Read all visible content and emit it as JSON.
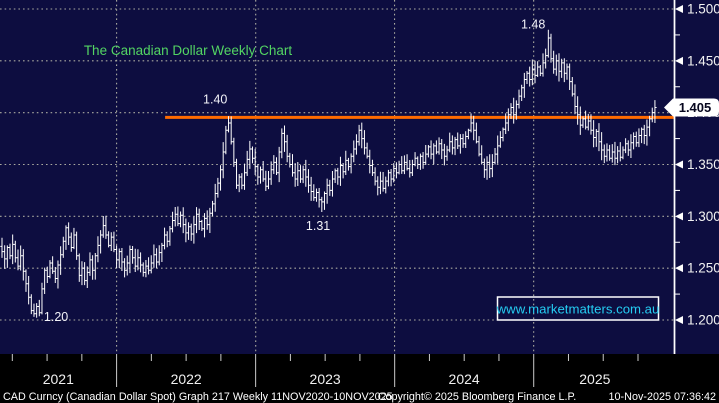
{
  "header": {
    "title": "The Canadian Dollar Weekly Chart",
    "title_color": "#53d463"
  },
  "watermark": {
    "text": "www.marketmatters.com.au",
    "color": "#25cdf2",
    "border_color": "#ffffff"
  },
  "price_tag": {
    "value": "1.405"
  },
  "footer": {
    "left": "CAD Curncy (Canadian Dollar Spot) Graph 217 Weekly 11NOV2020-10NOV2025",
    "center": "Copyright© 2025 Bloomberg Finance L.P.",
    "right": "10-Nov-2025 07:36:42"
  },
  "colors": {
    "background": "#0d0d40",
    "strip": "#000000",
    "bars": "#ffffff",
    "grid": "#aaaaa0",
    "axis": "#ffffff",
    "resistance": "#ff6b00"
  },
  "chart_data": {
    "type": "ohlc-bar",
    "title": "The Canadian Dollar Weekly Chart",
    "instrument": "CAD Curncy (Canadian Dollar Spot)",
    "graph_number": "217",
    "period": "Weekly",
    "date_range": "11NOV2020-10NOV2025",
    "last_price": 1.405,
    "ylim": [
      1.167,
      1.509
    ],
    "y_major_ticks": [
      1.2,
      1.25,
      1.3,
      1.35,
      1.4,
      1.45,
      1.5
    ],
    "y_major_labels": [
      "1.200",
      "1.250",
      "1.300",
      "1.350",
      "1.400",
      "1.450",
      "1.500"
    ],
    "y_minor_ticks": [
      1.225,
      1.275,
      1.325,
      1.375,
      1.425,
      1.475
    ],
    "grid": true,
    "x_year_labels": [
      "2021",
      "2022",
      "2023",
      "2024",
      "2025"
    ],
    "year_start_weeks": [
      43.0,
      95.2,
      147.3,
      199.5
    ],
    "weeks_per_quarter": 13.043,
    "weeks_total": 246,
    "resistance_line": {
      "level": 1.3955,
      "label": "1.40",
      "start_week": 61.2,
      "color": "#ff6b00"
    },
    "annotations": [
      {
        "text": "1.40",
        "week": 80.0,
        "price": 1.409
      },
      {
        "text": "1.48",
        "week": 199.3,
        "price": 1.481
      },
      {
        "text": "1.31",
        "week": 118.6,
        "price": 1.287
      },
      {
        "text": "1.20",
        "week": 20.3,
        "price": 1.199
      }
    ],
    "weekly_closes": [
      1.266,
      1.259,
      1.27,
      1.262,
      1.273,
      1.26,
      1.252,
      1.262,
      1.247,
      1.235,
      1.222,
      1.209,
      1.206,
      1.213,
      1.207,
      1.23,
      1.248,
      1.242,
      1.255,
      1.247,
      1.24,
      1.253,
      1.263,
      1.276,
      1.289,
      1.28,
      1.27,
      1.282,
      1.262,
      1.243,
      1.25,
      1.238,
      1.246,
      1.258,
      1.248,
      1.262,
      1.272,
      1.282,
      1.291,
      1.282,
      1.272,
      1.28,
      1.268,
      1.258,
      1.266,
      1.256,
      1.248,
      1.255,
      1.268,
      1.26,
      1.252,
      1.26,
      1.253,
      1.246,
      1.252,
      1.248,
      1.255,
      1.263,
      1.256,
      1.265,
      1.272,
      1.282,
      1.276,
      1.288,
      1.296,
      1.302,
      1.293,
      1.301,
      1.292,
      1.284,
      1.29,
      1.283,
      1.292,
      1.302,
      1.295,
      1.288,
      1.298,
      1.292,
      1.303,
      1.312,
      1.322,
      1.332,
      1.345,
      1.362,
      1.383,
      1.39,
      1.372,
      1.352,
      1.33,
      1.338,
      1.33,
      1.342,
      1.355,
      1.365,
      1.356,
      1.348,
      1.338,
      1.345,
      1.336,
      1.329,
      1.336,
      1.345,
      1.352,
      1.342,
      1.362,
      1.38,
      1.372,
      1.358,
      1.35,
      1.342,
      1.336,
      1.344,
      1.336,
      1.345,
      1.338,
      1.33,
      1.324,
      1.318,
      1.323,
      1.316,
      1.314,
      1.322,
      1.33,
      1.325,
      1.336,
      1.344,
      1.338,
      1.349,
      1.343,
      1.354,
      1.348,
      1.358,
      1.365,
      1.372,
      1.383,
      1.375,
      1.366,
      1.358,
      1.349,
      1.342,
      1.334,
      1.328,
      1.334,
      1.327,
      1.334,
      1.342,
      1.336,
      1.346,
      1.342,
      1.35,
      1.344,
      1.352,
      1.346,
      1.342,
      1.35,
      1.356,
      1.35,
      1.358,
      1.352,
      1.36,
      1.367,
      1.36,
      1.368,
      1.362,
      1.37,
      1.364,
      1.358,
      1.364,
      1.372,
      1.366,
      1.374,
      1.368,
      1.375,
      1.37,
      1.377,
      1.383,
      1.39,
      1.383,
      1.372,
      1.36,
      1.352,
      1.345,
      1.352,
      1.346,
      1.352,
      1.36,
      1.368,
      1.376,
      1.384,
      1.39,
      1.398,
      1.405,
      1.398,
      1.408,
      1.416,
      1.424,
      1.432,
      1.438,
      1.432,
      1.442,
      1.436,
      1.444,
      1.438,
      1.448,
      1.455,
      1.472,
      1.452,
      1.442,
      1.45,
      1.44,
      1.448,
      1.438,
      1.444,
      1.43,
      1.418,
      1.406,
      1.398,
      1.388,
      1.394,
      1.386,
      1.392,
      1.383,
      1.376,
      1.382,
      1.372,
      1.364,
      1.358,
      1.364,
      1.356,
      1.362,
      1.356,
      1.363,
      1.357,
      1.364,
      1.37,
      1.364,
      1.371,
      1.377,
      1.371,
      1.378,
      1.384,
      1.378,
      1.386,
      1.394,
      1.4,
      1.405
    ],
    "overrides": {
      "high": {
        "205": 1.48
      },
      "low": {
        "12": 1.203
      }
    }
  }
}
